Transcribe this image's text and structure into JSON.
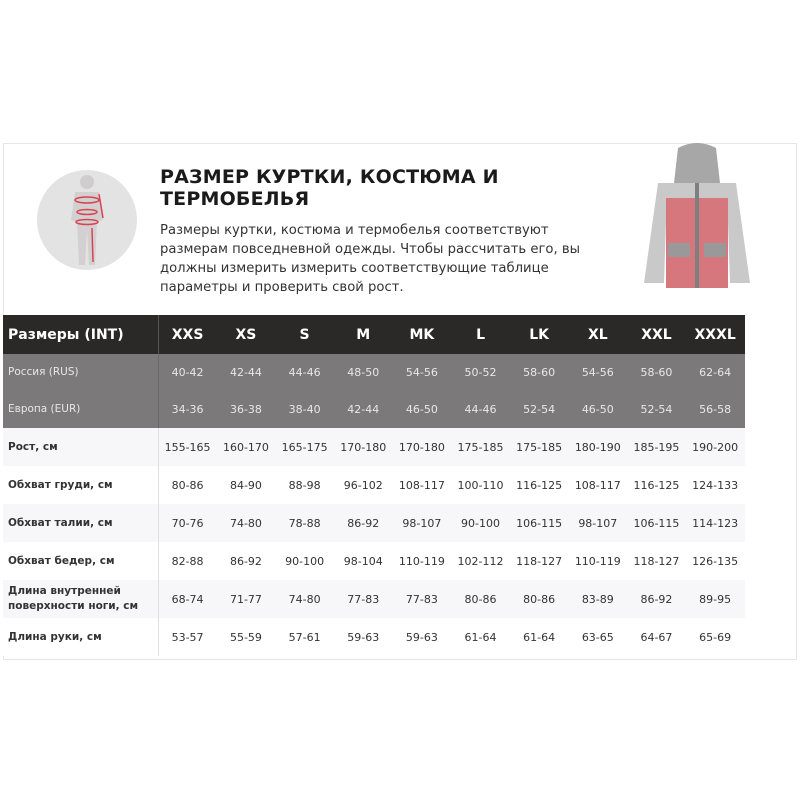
{
  "header": {
    "title": "РАЗМЕР КУРТКИ, КОСТЮМА И ТЕРМОБЕЛЬЯ",
    "description": "Размеры куртки, костюма и термобелья соответствуют размерам повседневной одежды. Чтобы рассчитать его, вы должны измерить измерить соответствующие таблице параметры и проверить свой рост."
  },
  "colors": {
    "header_bg": "#2b2828",
    "gray_rows": "#7b797a",
    "accent": "#d9434f"
  },
  "table": {
    "header_label": "Размеры (INT)",
    "sizes": [
      "XXS",
      "XS",
      "S",
      "M",
      "MK",
      "L",
      "LK",
      "XL",
      "XXL",
      "XXXL"
    ],
    "gray_rows": [
      {
        "label": "Россия (RUS)",
        "values": [
          "40-42",
          "42-44",
          "44-46",
          "48-50",
          "54-56",
          "50-52",
          "58-60",
          "54-56",
          "58-60",
          "62-64"
        ]
      },
      {
        "label": "Европа (EUR)",
        "values": [
          "34-36",
          "36-38",
          "38-40",
          "42-44",
          "46-50",
          "44-46",
          "52-54",
          "46-50",
          "52-54",
          "56-58"
        ]
      }
    ],
    "rows": [
      {
        "label": "Рост, см",
        "values": [
          "155-165",
          "160-170",
          "165-175",
          "170-180",
          "170-180",
          "175-185",
          "175-185",
          "180-190",
          "185-195",
          "190-200"
        ]
      },
      {
        "label": "Обхват груди, см",
        "values": [
          "80-86",
          "84-90",
          "88-98",
          "96-102",
          "108-117",
          "100-110",
          "116-125",
          "108-117",
          "116-125",
          "124-133"
        ]
      },
      {
        "label": "Обхват талии, см",
        "values": [
          "70-76",
          "74-80",
          "78-88",
          "86-92",
          "98-107",
          "90-100",
          "106-115",
          "98-107",
          "106-115",
          "114-123"
        ]
      },
      {
        "label": "Обхват бедер, см",
        "values": [
          "82-88",
          "86-92",
          "90-100",
          "98-104",
          "110-119",
          "102-112",
          "118-127",
          "110-119",
          "118-127",
          "126-135"
        ]
      },
      {
        "label": "Длина внутренней поверхности ноги, см",
        "values": [
          "68-74",
          "71-77",
          "74-80",
          "77-83",
          "77-83",
          "80-86",
          "80-86",
          "83-89",
          "86-92",
          "89-95"
        ]
      },
      {
        "label": "Длина руки, см",
        "values": [
          "53-57",
          "55-59",
          "57-61",
          "59-63",
          "59-63",
          "61-64",
          "61-64",
          "63-65",
          "64-67",
          "65-69"
        ]
      }
    ]
  }
}
